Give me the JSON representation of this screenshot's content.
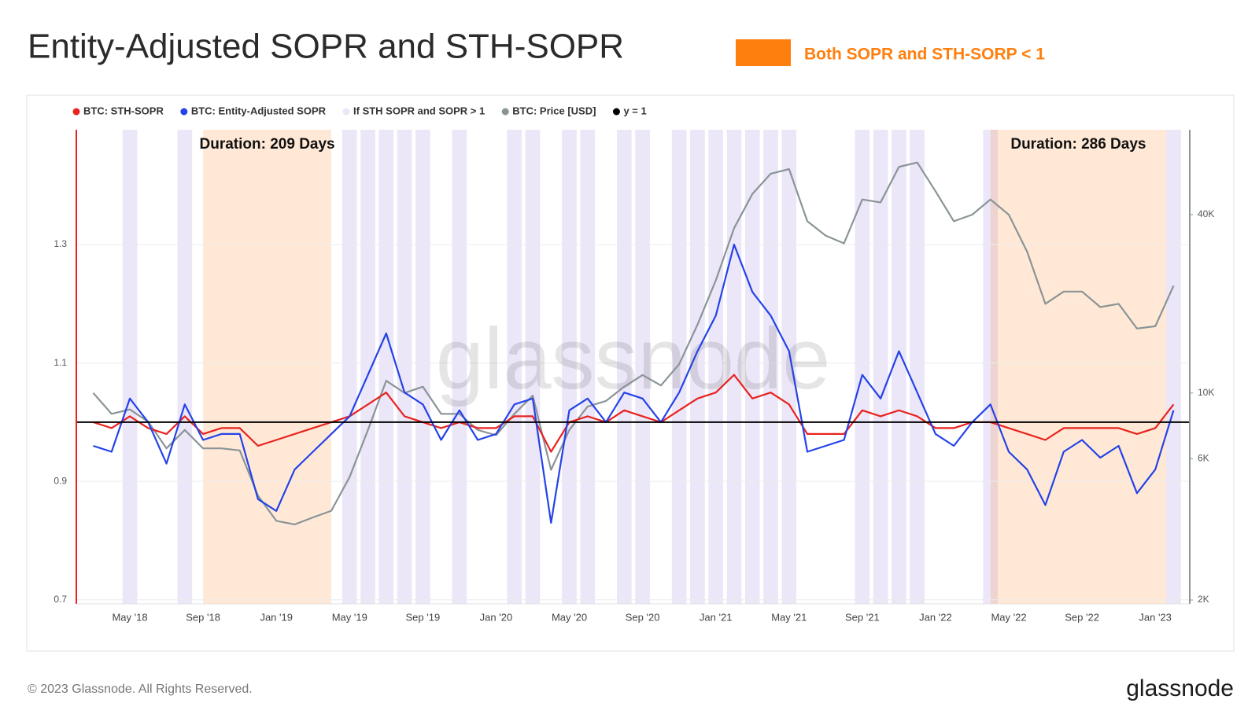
{
  "title": "Entity-Adjusted SOPR and STH-SOPR",
  "highlight_legend": {
    "label": "Both SOPR and STH-SORP < 1",
    "color": "#ff7f0e"
  },
  "footer": "© 2023 Glassnode. All Rights Reserved.",
  "logo": "glassnode",
  "chart_data": {
    "type": "line",
    "watermark": "glassnode",
    "categories": [
      null,
      null,
      "May '18",
      null,
      null,
      null,
      "Sep '18",
      null,
      null,
      null,
      "Jan '19",
      null,
      null,
      null,
      "May '19",
      null,
      null,
      null,
      "Sep '19",
      null,
      null,
      null,
      "Jan '20",
      null,
      null,
      null,
      "May '20",
      null,
      null,
      null,
      "Sep '20",
      null,
      null,
      null,
      "Jan '21",
      null,
      null,
      null,
      "May '21",
      null,
      null,
      null,
      "Sep '21",
      null,
      null,
      null,
      "Jan '22",
      null,
      null,
      null,
      "May '22",
      null,
      null,
      null,
      "Sep '22",
      null,
      null,
      null,
      "Jan '23",
      null
    ],
    "series": [
      {
        "name": "BTC: STH-SOPR",
        "color": "#e8231f",
        "values": [
          1.0,
          0.99,
          1.01,
          0.99,
          0.98,
          1.01,
          0.98,
          0.99,
          0.99,
          0.96,
          0.97,
          0.98,
          0.99,
          1.0,
          1.01,
          1.03,
          1.05,
          1.01,
          1.0,
          0.99,
          1.0,
          0.99,
          0.99,
          1.01,
          1.01,
          0.95,
          1.0,
          1.01,
          1.0,
          1.02,
          1.01,
          1.0,
          1.02,
          1.04,
          1.05,
          1.08,
          1.04,
          1.05,
          1.03,
          0.98,
          0.98,
          0.98,
          1.02,
          1.01,
          1.02,
          1.01,
          0.99,
          0.99,
          1.0,
          1.0,
          0.99,
          0.98,
          0.97,
          0.99,
          0.99,
          0.99,
          0.99,
          0.98,
          0.99,
          1.03
        ]
      },
      {
        "name": "BTC: Entity-Adjusted SOPR",
        "color": "#2443e8",
        "values": [
          0.96,
          0.95,
          1.04,
          1.0,
          0.93,
          1.03,
          0.97,
          0.98,
          0.98,
          0.87,
          0.85,
          0.92,
          0.95,
          0.98,
          1.01,
          1.08,
          1.15,
          1.05,
          1.03,
          0.97,
          1.02,
          0.97,
          0.98,
          1.03,
          1.04,
          0.83,
          1.02,
          1.04,
          1.0,
          1.05,
          1.04,
          1.0,
          1.05,
          1.12,
          1.18,
          1.3,
          1.22,
          1.18,
          1.12,
          0.95,
          0.96,
          0.97,
          1.08,
          1.04,
          1.12,
          1.05,
          0.98,
          0.96,
          1.0,
          1.03,
          0.95,
          0.92,
          0.86,
          0.95,
          0.97,
          0.94,
          0.96,
          0.88,
          0.92,
          1.02
        ]
      },
      {
        "name": "If STH SOPR and SOPR > 1",
        "color": "#ebe6f8",
        "kind": "indicator",
        "values": [
          0,
          0,
          1,
          0,
          0,
          1,
          0,
          0,
          0,
          0,
          0,
          0,
          0,
          0,
          1,
          1,
          1,
          1,
          1,
          0,
          1,
          0,
          0,
          1,
          1,
          0,
          1,
          1,
          0,
          1,
          1,
          0,
          1,
          1,
          1,
          1,
          1,
          1,
          1,
          0,
          0,
          0,
          1,
          1,
          1,
          1,
          0,
          0,
          0,
          1,
          0,
          0,
          0,
          0,
          0,
          0,
          0,
          0,
          0,
          1
        ]
      },
      {
        "name": "BTC: Price [USD]",
        "color": "#8a9497",
        "axis": "y2",
        "values": [
          10000,
          8500,
          8800,
          8000,
          6500,
          7500,
          6500,
          6500,
          6400,
          4500,
          3700,
          3600,
          3800,
          4000,
          5200,
          7500,
          11000,
          10000,
          10500,
          8500,
          8500,
          7500,
          7200,
          8500,
          9800,
          5500,
          7500,
          9000,
          9400,
          10500,
          11500,
          10600,
          12500,
          17000,
          24000,
          36000,
          47000,
          55000,
          57000,
          38000,
          34000,
          32000,
          45000,
          44000,
          58000,
          60000,
          48000,
          38000,
          40000,
          45000,
          40000,
          30000,
          20000,
          22000,
          22000,
          19500,
          20000,
          16500,
          16800,
          23000
        ]
      },
      {
        "name": "y = 1",
        "color": "#000000",
        "kind": "hline",
        "value": 1
      }
    ],
    "annotations": [
      {
        "text": "Duration: 209 Days",
        "from": 6,
        "to": 13
      },
      {
        "text": "Duration: 286 Days",
        "from": 49,
        "to": 58.6
      }
    ],
    "ylim": [
      0.693,
      1.494
    ],
    "yticks": [
      0.7,
      0.9,
      1.1,
      1.3
    ],
    "y2lim": [
      1940,
      77400
    ],
    "y2ticks": [
      {
        "value": 2000,
        "label": "2K"
      },
      {
        "value": 6000,
        "label": "6K"
      },
      {
        "value": 10000,
        "label": "10K"
      },
      {
        "value": 40000,
        "label": "40K"
      }
    ],
    "y2log": true,
    "grid": true
  }
}
